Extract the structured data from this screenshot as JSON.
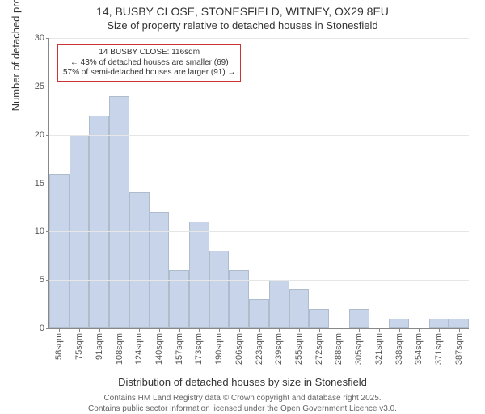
{
  "header": {
    "title_line1": "14, BUSBY CLOSE, STONESFIELD, WITNEY, OX29 8EU",
    "title_line2": "Size of property relative to detached houses in Stonesfield"
  },
  "chart": {
    "type": "histogram",
    "ylabel": "Number of detached properties",
    "xlabel": "Distribution of detached houses by size in Stonesfield",
    "ylim": [
      0,
      30
    ],
    "ytick_step": 5,
    "yticks": [
      0,
      5,
      10,
      15,
      20,
      25,
      30
    ],
    "categories": [
      "58sqm",
      "75sqm",
      "91sqm",
      "108sqm",
      "124sqm",
      "140sqm",
      "157sqm",
      "173sqm",
      "190sqm",
      "206sqm",
      "223sqm",
      "239sqm",
      "255sqm",
      "272sqm",
      "288sqm",
      "305sqm",
      "321sqm",
      "338sqm",
      "354sqm",
      "371sqm",
      "387sqm"
    ],
    "values": [
      16,
      20,
      22,
      24,
      14,
      12,
      6,
      11,
      8,
      6,
      3,
      5,
      4,
      2,
      0,
      2,
      0,
      1,
      0,
      1,
      1
    ],
    "bar_fill": "#c7d4ea",
    "bar_border": "#7f8c8d55",
    "background_color": "#ffffff",
    "grid_color": "#e6e6e6",
    "axis_color": "#888888",
    "marker": {
      "value_sqm": 116,
      "color": "#cc3333",
      "line_width": 1
    },
    "annotation": {
      "line1": "14 BUSBY CLOSE: 116sqm",
      "line2": "← 43% of detached houses are smaller (69)",
      "line3": "57% of semi-detached houses are larger (91) →",
      "border_color": "#cc3333",
      "background": "#ffffff",
      "fontsize": 10
    }
  },
  "footer": {
    "line1": "Contains HM Land Registry data © Crown copyright and database right 2025.",
    "line2": "Contains public sector information licensed under the Open Government Licence v3.0."
  }
}
